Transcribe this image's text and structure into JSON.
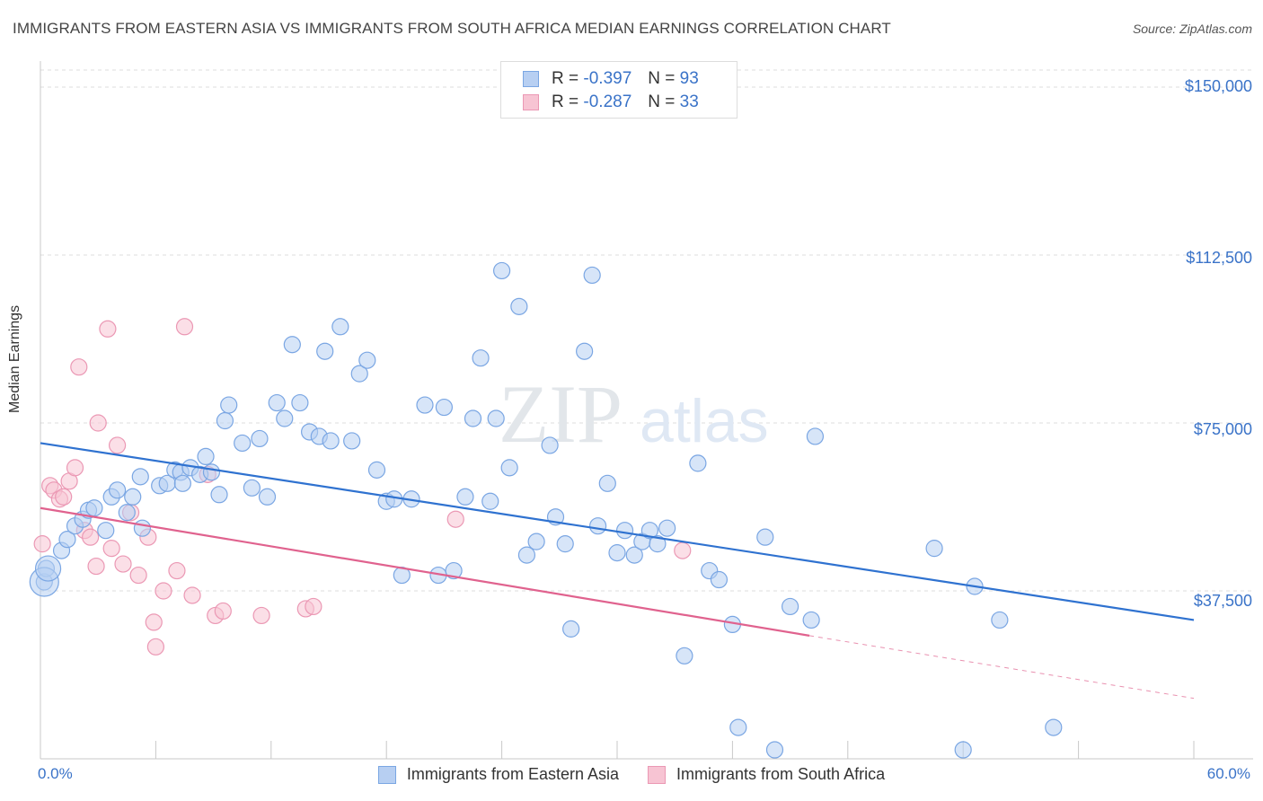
{
  "title": "IMMIGRANTS FROM EASTERN ASIA VS IMMIGRANTS FROM SOUTH AFRICA MEDIAN EARNINGS CORRELATION CHART",
  "source": "Source: ZipAtlas.com",
  "watermark_zip": "ZIP",
  "watermark_atlas": "atlas",
  "legend_top": {
    "r_label": "R =",
    "n_label": "N =",
    "rows": [
      {
        "r": "-0.397",
        "n": "93"
      },
      {
        "r": "-0.287",
        "n": "33"
      }
    ]
  },
  "colors": {
    "blue_fill": "#b7cff2",
    "blue_stroke": "#7aa6e3",
    "blue_line": "#2f72d0",
    "pink_fill": "#f7c4d3",
    "pink_stroke": "#eb98b4",
    "pink_line": "#e0628e",
    "axis_text": "#3a73c8",
    "grid": "#dddddd"
  },
  "chart_data": {
    "type": "scatter",
    "title": "IMMIGRANTS FROM EASTERN ASIA VS IMMIGRANTS FROM SOUTH AFRICA MEDIAN EARNINGS CORRELATION CHART",
    "xlabel": "",
    "ylabel": "Median Earnings",
    "xlim": [
      0,
      60
    ],
    "ylim": [
      0,
      150000
    ],
    "x_tick_labels": [
      "0.0%",
      "60.0%"
    ],
    "y_ticks": [
      37500,
      75000,
      112500,
      150000
    ],
    "y_tick_labels": [
      "$37,500",
      "$75,000",
      "$112,500",
      "$150,000"
    ],
    "grid": true,
    "legend": "bottom",
    "series": [
      {
        "name": "Immigrants from Eastern Asia",
        "trend": {
          "x": [
            0,
            60
          ],
          "y": [
            70500,
            31000
          ]
        },
        "points": [
          [
            0.2,
            39500
          ],
          [
            0.3,
            42500
          ],
          [
            1.1,
            46500
          ],
          [
            1.4,
            49000
          ],
          [
            1.8,
            52000
          ],
          [
            2.2,
            53500
          ],
          [
            2.5,
            55500
          ],
          [
            2.8,
            56000
          ],
          [
            3.4,
            51000
          ],
          [
            3.7,
            58500
          ],
          [
            4.0,
            60000
          ],
          [
            4.5,
            55000
          ],
          [
            4.8,
            58500
          ],
          [
            5.3,
            51500
          ],
          [
            5.2,
            63000
          ],
          [
            6.2,
            61000
          ],
          [
            6.6,
            61500
          ],
          [
            7.0,
            64500
          ],
          [
            7.3,
            64000
          ],
          [
            7.4,
            61500
          ],
          [
            7.8,
            65000
          ],
          [
            8.3,
            63500
          ],
          [
            8.6,
            67500
          ],
          [
            8.9,
            64000
          ],
          [
            9.3,
            59000
          ],
          [
            9.6,
            75500
          ],
          [
            9.8,
            79000
          ],
          [
            10.5,
            70500
          ],
          [
            11.0,
            60500
          ],
          [
            11.4,
            71500
          ],
          [
            11.8,
            58500
          ],
          [
            12.3,
            79500
          ],
          [
            12.7,
            76000
          ],
          [
            13.1,
            92500
          ],
          [
            13.5,
            79500
          ],
          [
            14.0,
            73000
          ],
          [
            14.5,
            72000
          ],
          [
            14.8,
            91000
          ],
          [
            15.1,
            71000
          ],
          [
            15.6,
            96500
          ],
          [
            16.2,
            71000
          ],
          [
            16.6,
            86000
          ],
          [
            17.0,
            89000
          ],
          [
            17.5,
            64500
          ],
          [
            18.0,
            57500
          ],
          [
            18.4,
            58000
          ],
          [
            18.8,
            41000
          ],
          [
            19.3,
            58000
          ],
          [
            20.0,
            79000
          ],
          [
            20.7,
            41000
          ],
          [
            21.0,
            78500
          ],
          [
            21.5,
            42000
          ],
          [
            22.1,
            58500
          ],
          [
            22.5,
            76000
          ],
          [
            22.9,
            89500
          ],
          [
            23.4,
            57500
          ],
          [
            23.7,
            76000
          ],
          [
            24.0,
            109000
          ],
          [
            24.4,
            65000
          ],
          [
            24.9,
            101000
          ],
          [
            25.3,
            45500
          ],
          [
            25.8,
            48500
          ],
          [
            26.5,
            70000
          ],
          [
            26.8,
            54000
          ],
          [
            27.3,
            48000
          ],
          [
            27.6,
            29000
          ],
          [
            28.3,
            91000
          ],
          [
            28.7,
            108000
          ],
          [
            29.0,
            52000
          ],
          [
            29.5,
            61500
          ],
          [
            30.0,
            46000
          ],
          [
            30.4,
            51000
          ],
          [
            30.9,
            45500
          ],
          [
            31.3,
            48500
          ],
          [
            31.7,
            51000
          ],
          [
            32.1,
            48000
          ],
          [
            32.6,
            51500
          ],
          [
            33.5,
            23000
          ],
          [
            34.2,
            66000
          ],
          [
            34.8,
            42000
          ],
          [
            35.3,
            40000
          ],
          [
            36.0,
            30000
          ],
          [
            36.3,
            7000
          ],
          [
            37.7,
            49500
          ],
          [
            38.2,
            2000
          ],
          [
            39.0,
            34000
          ],
          [
            40.1,
            31000
          ],
          [
            40.3,
            72000
          ],
          [
            46.5,
            47000
          ],
          [
            48.0,
            2000
          ],
          [
            48.6,
            38500
          ],
          [
            49.9,
            31000
          ],
          [
            52.7,
            7000
          ]
        ]
      },
      {
        "name": "Immigrants from South Africa",
        "trend": {
          "x": [
            0,
            40
          ],
          "y": [
            56000,
            27500
          ]
        },
        "trend_dashed": {
          "x": [
            40,
            60
          ],
          "y": [
            27500,
            13500
          ]
        },
        "points": [
          [
            0.1,
            48000
          ],
          [
            0.5,
            61000
          ],
          [
            0.7,
            60000
          ],
          [
            1.0,
            58000
          ],
          [
            1.2,
            58500
          ],
          [
            1.5,
            62000
          ],
          [
            1.8,
            65000
          ],
          [
            2.0,
            87500
          ],
          [
            2.3,
            51000
          ],
          [
            2.6,
            49500
          ],
          [
            2.9,
            43000
          ],
          [
            3.0,
            75000
          ],
          [
            3.5,
            96000
          ],
          [
            3.7,
            47000
          ],
          [
            4.0,
            70000
          ],
          [
            4.3,
            43500
          ],
          [
            4.7,
            55000
          ],
          [
            5.1,
            41000
          ],
          [
            5.6,
            49500
          ],
          [
            5.9,
            30500
          ],
          [
            6.0,
            25000
          ],
          [
            6.4,
            37500
          ],
          [
            7.1,
            42000
          ],
          [
            7.5,
            96500
          ],
          [
            7.9,
            36500
          ],
          [
            8.7,
            63500
          ],
          [
            9.1,
            32000
          ],
          [
            9.5,
            33000
          ],
          [
            11.5,
            32000
          ],
          [
            13.8,
            33500
          ],
          [
            14.2,
            34000
          ],
          [
            21.6,
            53500
          ],
          [
            33.4,
            46500
          ]
        ]
      }
    ]
  }
}
